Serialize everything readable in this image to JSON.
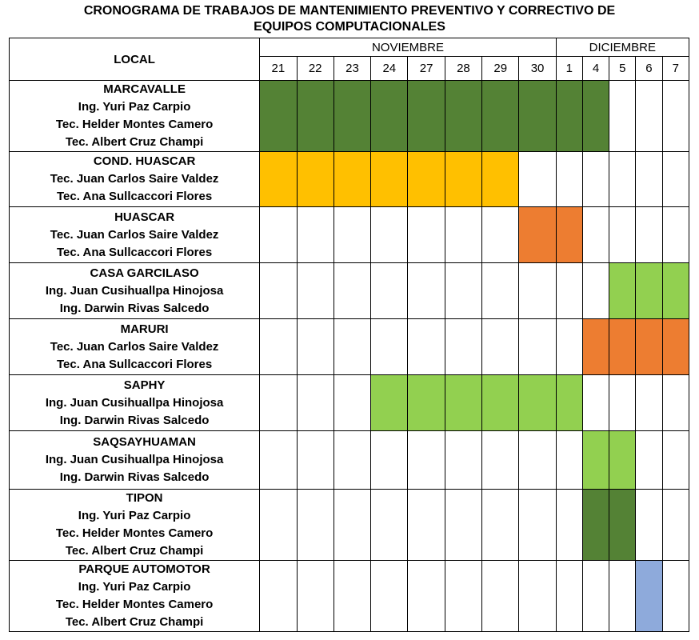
{
  "title": {
    "line1": "CRONOGRAMA DE TRABAJOS DE MANTENIMIENTO PREVENTIVO Y CORRECTIVO DE",
    "line2": "EQUIPOS COMPUTACIONALES"
  },
  "header": {
    "local_label": "LOCAL",
    "months": [
      "NOVIEMBRE",
      "DICIEMBRE"
    ],
    "days": [
      "21",
      "22",
      "23",
      "24",
      "27",
      "28",
      "29",
      "30",
      "1",
      "4",
      "5",
      "6",
      "7"
    ]
  },
  "colors": {
    "dark_green": "#548235",
    "yellow": "#ffc000",
    "orange": "#ed7d31",
    "light_green": "#92d050",
    "blue": "#8eaadb"
  },
  "rows": [
    {
      "site": "MARCAVALLE",
      "people": [
        "Ing. Yuri Paz Carpio",
        "Tec. Helder Montes Camero",
        "Tec. Albert Cruz Champi"
      ],
      "color": "dark_green",
      "active_days": [
        "21",
        "22",
        "23",
        "24",
        "27",
        "28",
        "29",
        "30",
        "1",
        "4"
      ]
    },
    {
      "site": "COND. HUASCAR",
      "people": [
        "Tec. Juan Carlos Saire Valdez",
        "Tec. Ana Sullcaccori Flores"
      ],
      "color": "yellow",
      "active_days": [
        "21",
        "22",
        "23",
        "24",
        "27",
        "28",
        "29"
      ]
    },
    {
      "site": "HUASCAR",
      "people": [
        "Tec. Juan Carlos Saire Valdez",
        "Tec. Ana Sullcaccori Flores"
      ],
      "color": "orange",
      "active_days": [
        "30",
        "1"
      ]
    },
    {
      "site": "CASA GARCILASO",
      "people": [
        "Ing. Juan Cusihuallpa Hinojosa",
        "Ing. Darwin Rivas Salcedo"
      ],
      "color": "light_green",
      "active_days": [
        "5",
        "6",
        "7"
      ]
    },
    {
      "site": "MARURI",
      "people": [
        "Tec. Juan Carlos Saire Valdez",
        "Tec. Ana Sullcaccori Flores"
      ],
      "color": "orange",
      "active_days": [
        "4",
        "5",
        "6",
        "7"
      ]
    },
    {
      "site": "SAPHY",
      "people": [
        "Ing. Juan Cusihuallpa Hinojosa",
        "Ing. Darwin Rivas Salcedo"
      ],
      "color": "light_green",
      "active_days": [
        "24",
        "27",
        "28",
        "29",
        "30",
        "1"
      ]
    },
    {
      "site": "SAQSAYHUAMAN",
      "people": [
        "Ing. Juan Cusihuallpa Hinojosa",
        "Ing. Darwin Rivas Salcedo"
      ],
      "color": "light_green",
      "active_days": [
        "4",
        "5"
      ]
    },
    {
      "site": "TIPON",
      "people": [
        "Ing. Yuri Paz Carpio",
        "Tec. Helder Montes Camero",
        "Tec. Albert Cruz Champi"
      ],
      "color": "dark_green",
      "active_days": [
        "4",
        "5"
      ]
    },
    {
      "site": "PARQUE AUTOMOTOR",
      "people": [
        "Ing. Yuri Paz Carpio",
        "Tec. Helder Montes Camero",
        "Tec. Albert Cruz Champi"
      ],
      "color": "blue",
      "active_days": [
        "6"
      ]
    }
  ]
}
